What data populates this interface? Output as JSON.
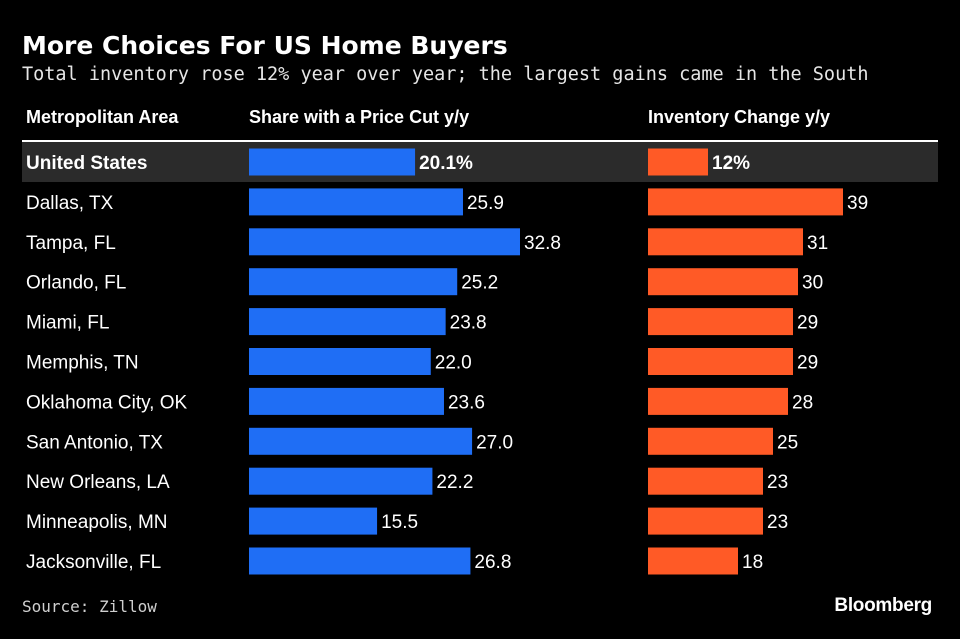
{
  "title": "More Choices For US Home Buyers",
  "subtitle": "Total inventory rose 12% year over year; the largest gains came in the South",
  "source": "Source: Zillow",
  "brand": "Bloomberg",
  "colors": {
    "price_cut_bar": "#1f6ef5",
    "inventory_bar": "#ff5a26",
    "highlight_row": "#2b2b2b",
    "background": "#000000"
  },
  "chart_data": {
    "type": "table",
    "columns": [
      "Metropolitan Area",
      "Share with a Price Cut y/y",
      "Inventory Change y/y"
    ],
    "rows": [
      {
        "area": "United States",
        "price_cut": 20.1,
        "price_cut_label": "20.1%",
        "inventory": 12,
        "inventory_label": "12%",
        "highlight": true
      },
      {
        "area": "Dallas, TX",
        "price_cut": 25.9,
        "price_cut_label": "25.9",
        "inventory": 39,
        "inventory_label": "39"
      },
      {
        "area": "Tampa, FL",
        "price_cut": 32.8,
        "price_cut_label": "32.8",
        "inventory": 31,
        "inventory_label": "31"
      },
      {
        "area": "Orlando, FL",
        "price_cut": 25.2,
        "price_cut_label": "25.2",
        "inventory": 30,
        "inventory_label": "30"
      },
      {
        "area": "Miami, FL",
        "price_cut": 23.8,
        "price_cut_label": "23.8",
        "inventory": 29,
        "inventory_label": "29"
      },
      {
        "area": "Memphis, TN",
        "price_cut": 22.0,
        "price_cut_label": "22.0",
        "inventory": 29,
        "inventory_label": "29"
      },
      {
        "area": "Oklahoma City, OK",
        "price_cut": 23.6,
        "price_cut_label": "23.6",
        "inventory": 28,
        "inventory_label": "28"
      },
      {
        "area": "San Antonio, TX",
        "price_cut": 27.0,
        "price_cut_label": "27.0",
        "inventory": 25,
        "inventory_label": "25"
      },
      {
        "area": "New Orleans, LA",
        "price_cut": 22.2,
        "price_cut_label": "22.2",
        "inventory": 23,
        "inventory_label": "23"
      },
      {
        "area": "Minneapolis, MN",
        "price_cut": 15.5,
        "price_cut_label": "15.5",
        "inventory": 23,
        "inventory_label": "23"
      },
      {
        "area": "Jacksonville, FL",
        "price_cut": 26.8,
        "price_cut_label": "26.8",
        "inventory": 18,
        "inventory_label": "18"
      }
    ]
  }
}
